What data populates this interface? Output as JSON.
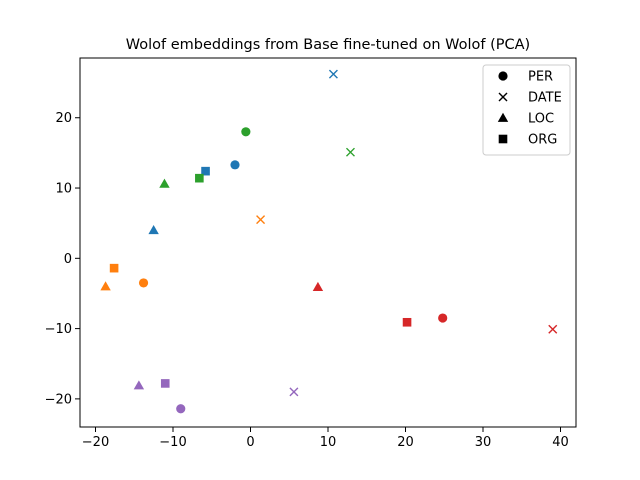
{
  "chart_data": {
    "type": "scatter",
    "title": "Wolof embeddings from Base fine-tuned on Wolof (PCA)",
    "xlabel": "",
    "ylabel": "",
    "xlim": [
      -22,
      42
    ],
    "ylim": [
      -24,
      28.5
    ],
    "xticks": [
      -20,
      -10,
      0,
      10,
      20,
      30,
      40
    ],
    "yticks": [
      -20,
      -10,
      0,
      10,
      20
    ],
    "grid": false,
    "legend_placement": "top-right",
    "legend": [
      {
        "label": "PER",
        "marker": "circle"
      },
      {
        "label": "DATE",
        "marker": "x"
      },
      {
        "label": "LOC",
        "marker": "triangle"
      },
      {
        "label": "ORG",
        "marker": "square"
      }
    ],
    "colors": {
      "blue": "#1f77b4",
      "orange": "#ff7f0e",
      "green": "#2ca02c",
      "red": "#d62728",
      "purple": "#9467bd",
      "legend_marker": "#000000"
    },
    "points": [
      {
        "x": -2.0,
        "y": 13.3,
        "marker": "circle",
        "color": "blue"
      },
      {
        "x": 10.7,
        "y": 26.2,
        "marker": "x",
        "color": "blue"
      },
      {
        "x": -12.5,
        "y": 4.0,
        "marker": "triangle",
        "color": "blue"
      },
      {
        "x": -5.8,
        "y": 12.4,
        "marker": "square",
        "color": "blue"
      },
      {
        "x": -13.8,
        "y": -3.5,
        "marker": "circle",
        "color": "orange"
      },
      {
        "x": 1.3,
        "y": 5.5,
        "marker": "x",
        "color": "orange"
      },
      {
        "x": -18.7,
        "y": -4.0,
        "marker": "triangle",
        "color": "orange"
      },
      {
        "x": -17.6,
        "y": -1.4,
        "marker": "square",
        "color": "orange"
      },
      {
        "x": -0.6,
        "y": 18.0,
        "marker": "circle",
        "color": "green"
      },
      {
        "x": 12.9,
        "y": 15.1,
        "marker": "x",
        "color": "green"
      },
      {
        "x": -11.1,
        "y": 10.6,
        "marker": "triangle",
        "color": "green"
      },
      {
        "x": -6.6,
        "y": 11.4,
        "marker": "square",
        "color": "green"
      },
      {
        "x": 24.8,
        "y": -8.5,
        "marker": "circle",
        "color": "red"
      },
      {
        "x": 39.0,
        "y": -10.1,
        "marker": "x",
        "color": "red"
      },
      {
        "x": 8.7,
        "y": -4.1,
        "marker": "triangle",
        "color": "red"
      },
      {
        "x": 20.2,
        "y": -9.1,
        "marker": "square",
        "color": "red"
      },
      {
        "x": -9.0,
        "y": -21.4,
        "marker": "circle",
        "color": "purple"
      },
      {
        "x": 5.6,
        "y": -19.0,
        "marker": "x",
        "color": "purple"
      },
      {
        "x": -14.4,
        "y": -18.1,
        "marker": "triangle",
        "color": "purple"
      },
      {
        "x": -11.0,
        "y": -17.8,
        "marker": "square",
        "color": "purple"
      }
    ]
  }
}
